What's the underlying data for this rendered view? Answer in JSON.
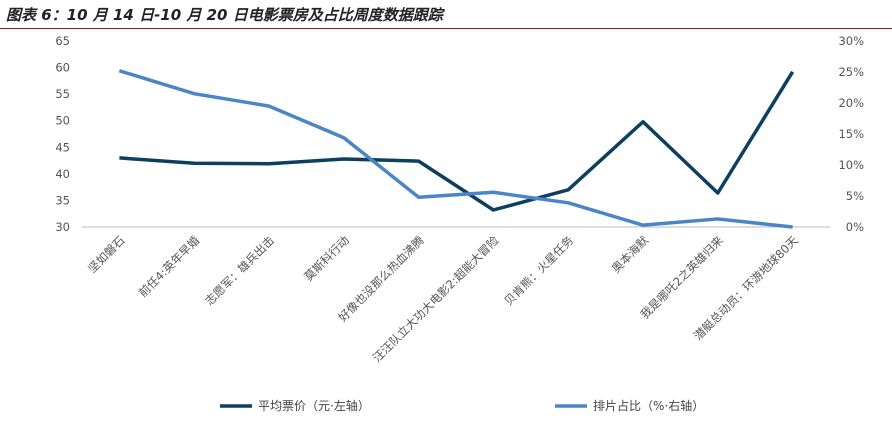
{
  "title": "图表 6：10 月 14 日-10 月 20 日电影票房及占比周度数据跟踪",
  "chart_data": {
    "type": "line",
    "categories": [
      "坚如磐石",
      "前任4:英年早婚",
      "志愿军：雄兵出击",
      "莫斯科行动",
      "好像也没那么热血沸腾",
      "汪汪队立大功大电影2:超能大冒险",
      "贝肯熊：火星任务",
      "奥本海默",
      "我是哪吒2之英雄归来",
      "潜艇总动员：环游地球80天"
    ],
    "series": [
      {
        "name": "平均票价（元·左轴）",
        "axis": "left",
        "color": "#0d3f5f",
        "values": [
          43.0,
          42.0,
          41.9,
          42.8,
          42.4,
          33.2,
          37.0,
          49.8,
          36.4,
          59.2
        ]
      },
      {
        "name": "排片占比（%·右轴）",
        "axis": "right",
        "color": "#4a86c5",
        "values": [
          25.2,
          21.5,
          19.5,
          14.4,
          4.8,
          5.6,
          3.9,
          0.3,
          1.3,
          0.0
        ]
      }
    ],
    "left_axis": {
      "ylim": [
        30,
        65
      ],
      "ticks": [
        "30",
        "35",
        "40",
        "45",
        "50",
        "55",
        "60",
        "65"
      ]
    },
    "right_axis": {
      "ylim": [
        0,
        30
      ],
      "ticks": [
        "0%",
        "5%",
        "10%",
        "15%",
        "20%",
        "25%",
        "30%"
      ]
    },
    "legend": "bottom",
    "grid": false
  }
}
